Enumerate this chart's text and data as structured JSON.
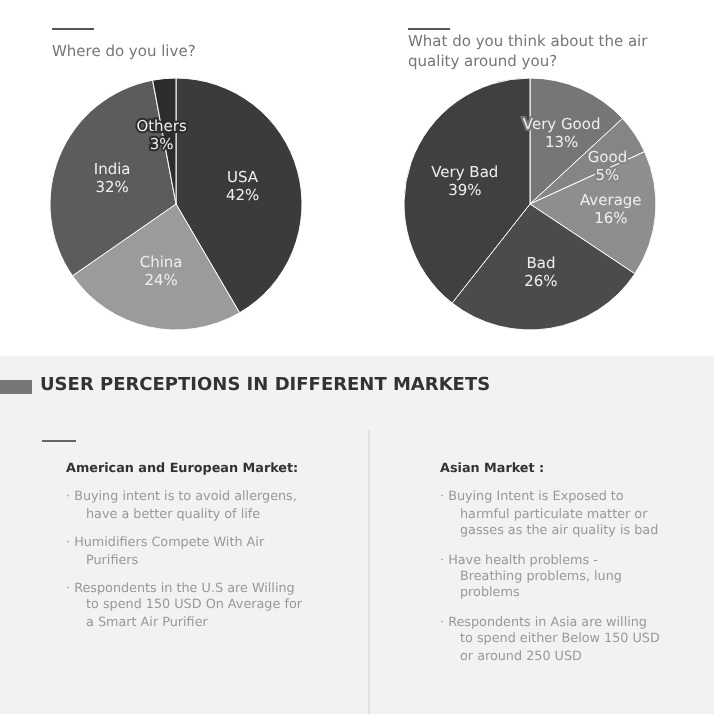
{
  "chart_data": [
    {
      "type": "pie",
      "title": "Where do you live?",
      "categories": [
        "USA",
        "China",
        "India",
        "Others"
      ],
      "values": [
        42,
        24,
        32,
        3
      ],
      "value_labels": [
        "42%",
        "24%",
        "32%",
        "3%"
      ],
      "colors": [
        "#3b3b3b",
        "#9b9b9b",
        "#5c5c5c",
        "#2c2c2c"
      ],
      "legend": false
    },
    {
      "type": "pie",
      "title": "What do you think about the air quality around you?",
      "categories": [
        "Very Good",
        "Good",
        "Average",
        "Bad",
        "Very Bad"
      ],
      "values": [
        13,
        5,
        16,
        26,
        39
      ],
      "value_labels": [
        "13%",
        "5%",
        "16%",
        "26%",
        "39%"
      ],
      "colors": [
        "#767676",
        "#858585",
        "#8e8e8e",
        "#4b4b4b",
        "#404040"
      ],
      "legend": false
    },
    {
      "type": "other",
      "title": "USER PERCEPTIONS IN DIFFERENT MARKETS",
      "annotations": [
        "American and European Market:",
        "· Buying intent is to avoid allergens, have a better quality of life",
        "· Humidifiers Compete With Air Purifiers",
        "· Respondents in the U.S are Willing to spend 150 USD On Average for a Smart Air Purifier",
        "Asian Market :",
        "· Buying Intent is Exposed to harmful particulate matter or gasses as the air quality is bad",
        "· Have health problems - Breathing problems, lung problems",
        "· Respondents in Asia are willing to spend either Below 150 USD or around 250 USD"
      ]
    }
  ]
}
